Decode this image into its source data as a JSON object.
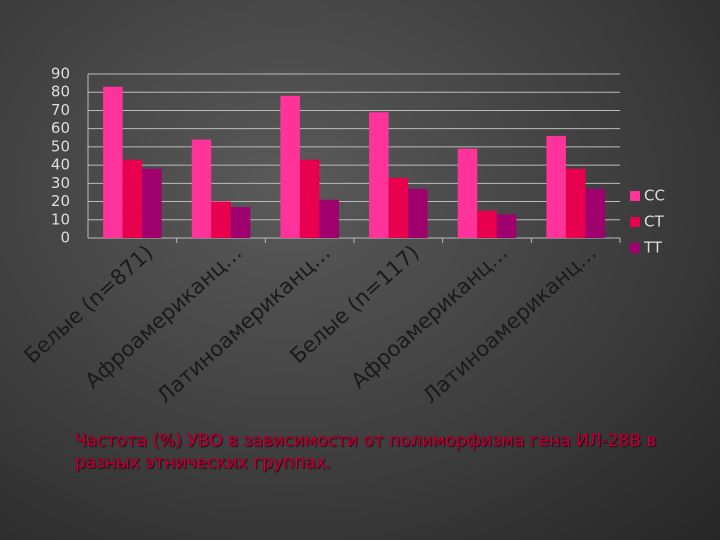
{
  "chart_data": {
    "type": "bar",
    "title": "Частота (%) УВО в зависимости от полиморфизма гена ИЛ-28В в разных этнических группах.",
    "categories": [
      "Белые (n=871)",
      "Афроамериканц…",
      "Латиноамериканц…",
      "Белые (n=117)",
      "Афроамериканц…",
      "Латиноамериканц…"
    ],
    "series": [
      {
        "name": "CC",
        "color": "#ff3399",
        "values": [
          83,
          54,
          78,
          69,
          49,
          56
        ]
      },
      {
        "name": "CT",
        "color": "#e8004f",
        "values": [
          43,
          20,
          43,
          33,
          15,
          38
        ]
      },
      {
        "name": "TT",
        "color": "#a0006e",
        "values": [
          38,
          17,
          21,
          27,
          13,
          27
        ]
      }
    ],
    "ylim": [
      0,
      90
    ],
    "yticks": [
      0,
      10,
      20,
      30,
      40,
      50,
      60,
      70,
      80,
      90
    ],
    "grid": true,
    "legend": "right"
  }
}
